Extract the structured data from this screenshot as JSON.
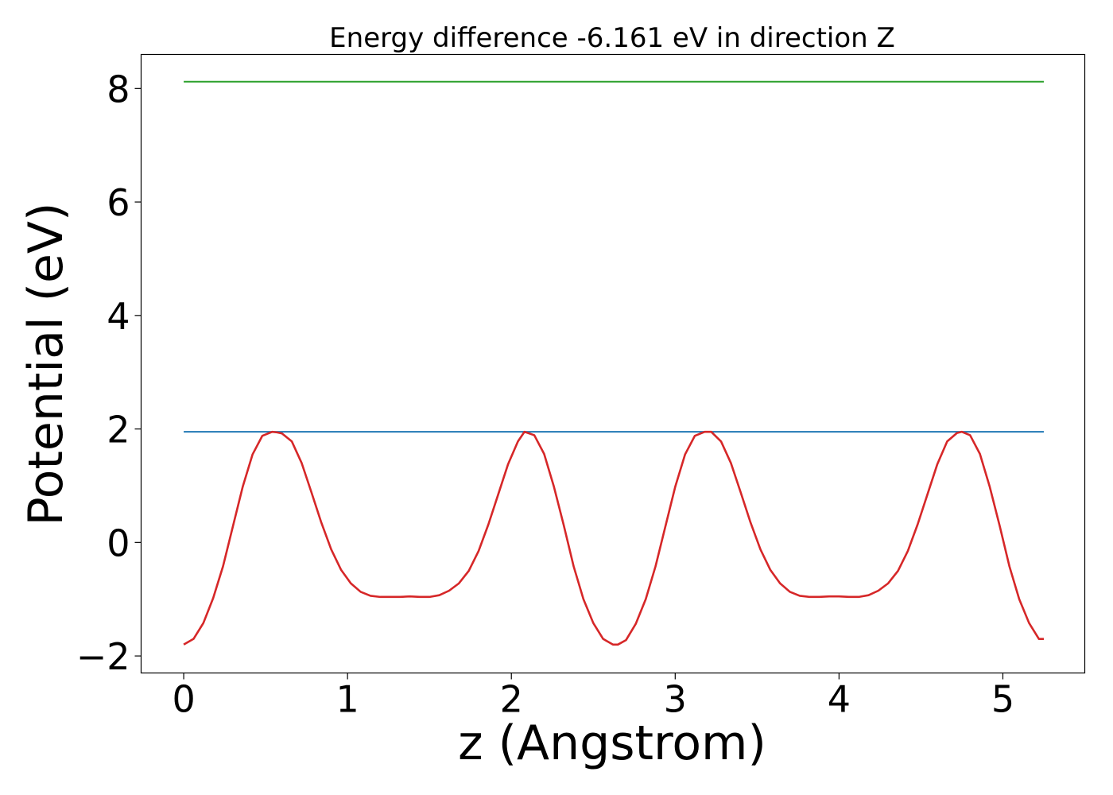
{
  "chart_data": {
    "type": "line",
    "title": "Energy difference -6.161 eV in direction Z",
    "xlabel": "z (Angstrom)",
    "ylabel": "Potential (eV)",
    "xlim": [
      -0.26,
      5.5
    ],
    "ylim": [
      -2.3,
      8.6
    ],
    "xticks": [
      0,
      1,
      2,
      3,
      4,
      5
    ],
    "xtick_labels": [
      "0",
      "1",
      "2",
      "3",
      "4",
      "5"
    ],
    "yticks": [
      -2,
      0,
      2,
      4,
      6,
      8
    ],
    "ytick_labels": [
      "−2",
      "0",
      "2",
      "4",
      "6",
      "8"
    ],
    "grid": false,
    "series": [
      {
        "color": "#d62728",
        "x": [
          0.0,
          0.06,
          0.12,
          0.18,
          0.24,
          0.3,
          0.36,
          0.42,
          0.48,
          0.54,
          0.57,
          0.6,
          0.66,
          0.72,
          0.78,
          0.84,
          0.9,
          0.96,
          1.02,
          1.08,
          1.14,
          1.2,
          1.26,
          1.32,
          1.38,
          1.44,
          1.5,
          1.56,
          1.62,
          1.68,
          1.74,
          1.8,
          1.86,
          1.92,
          1.98,
          2.04,
          2.08,
          2.14,
          2.2,
          2.26,
          2.32,
          2.38,
          2.44,
          2.5,
          2.56,
          2.62,
          2.65,
          2.7,
          2.76,
          2.82,
          2.88,
          2.94,
          3.0,
          3.06,
          3.12,
          3.18,
          3.22,
          3.28,
          3.34,
          3.4,
          3.46,
          3.52,
          3.58,
          3.64,
          3.7,
          3.76,
          3.82,
          3.88,
          3.94,
          4.0,
          4.06,
          4.12,
          4.18,
          4.24,
          4.3,
          4.36,
          4.42,
          4.48,
          4.54,
          4.6,
          4.66,
          4.72,
          4.75,
          4.8,
          4.86,
          4.92,
          4.98,
          5.04,
          5.1,
          5.16,
          5.22,
          5.25
        ],
        "values": [
          -1.8,
          -1.7,
          -1.42,
          -0.98,
          -0.42,
          0.28,
          0.98,
          1.55,
          1.88,
          1.95,
          1.94,
          1.92,
          1.78,
          1.4,
          0.88,
          0.35,
          -0.12,
          -0.48,
          -0.72,
          -0.87,
          -0.94,
          -0.96,
          -0.96,
          -0.96,
          -0.95,
          -0.96,
          -0.96,
          -0.93,
          -0.85,
          -0.72,
          -0.5,
          -0.15,
          0.32,
          0.85,
          1.38,
          1.78,
          1.95,
          1.89,
          1.56,
          0.98,
          0.3,
          -0.42,
          -1.0,
          -1.42,
          -1.7,
          -1.8,
          -1.8,
          -1.72,
          -1.43,
          -1.0,
          -0.42,
          0.28,
          0.98,
          1.55,
          1.88,
          1.95,
          1.95,
          1.78,
          1.4,
          0.88,
          0.35,
          -0.12,
          -0.48,
          -0.72,
          -0.87,
          -0.94,
          -0.96,
          -0.96,
          -0.95,
          -0.95,
          -0.96,
          -0.96,
          -0.93,
          -0.85,
          -0.72,
          -0.5,
          -0.15,
          0.32,
          0.85,
          1.38,
          1.78,
          1.93,
          1.95,
          1.89,
          1.56,
          0.98,
          0.3,
          -0.42,
          -1.0,
          -1.42,
          -1.7,
          -1.7
        ]
      },
      {
        "color": "#1f77b4",
        "x": [
          0.0,
          5.25
        ],
        "values": [
          1.95,
          1.95
        ]
      },
      {
        "color": "#2ca02c",
        "x": [
          0.0,
          5.25
        ],
        "values": [
          8.12,
          8.12
        ]
      }
    ]
  }
}
